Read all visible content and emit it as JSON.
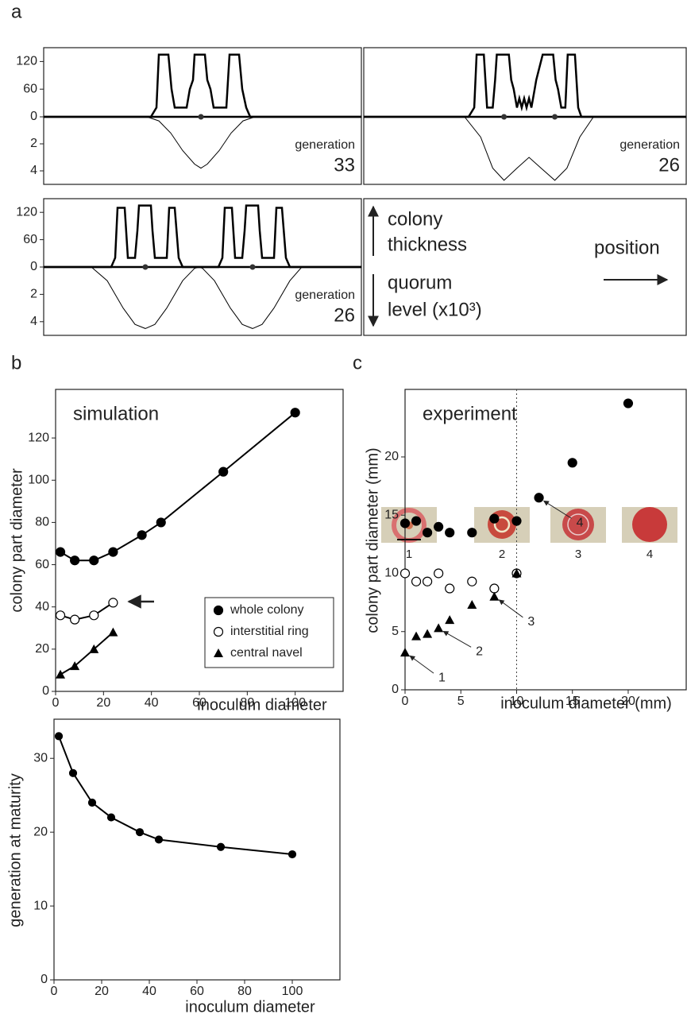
{
  "panel_labels": [
    "a",
    "b",
    "c"
  ],
  "legend_panel": {
    "thickness": [
      "colony",
      "thickness"
    ],
    "quorum": [
      "quorum",
      "level (x10³)"
    ],
    "position": "position"
  },
  "photos": {
    "labels": [
      "1",
      "2",
      "3",
      "4"
    ]
  },
  "chart_data": [
    {
      "type": "profile",
      "xlim": [
        0,
        400
      ],
      "ylim": [
        0,
        150
      ],
      "yticks": [
        0,
        60,
        120
      ],
      "y2lim": [
        0,
        5
      ],
      "y2ticks": [
        2,
        4
      ],
      "series": [
        {
          "color": "#000000",
          "x": [
            0,
            135,
            142,
            145,
            157,
            161,
            165,
            180,
            184,
            188,
            190,
            203,
            206,
            210,
            214,
            230,
            234,
            246,
            250,
            255,
            260,
            400
          ],
          "values": [
            0,
            0,
            20,
            135,
            135,
            60,
            20,
            20,
            60,
            80,
            135,
            135,
            80,
            60,
            20,
            20,
            135,
            135,
            60,
            20,
            0,
            0
          ]
        },
        {
          "color": "#000000",
          "axis": "y2",
          "x": [
            0,
            130,
            145,
            160,
            175,
            190,
            198,
            206,
            221,
            236,
            251,
            266,
            400
          ],
          "values": [
            0,
            0,
            0.3,
            1.2,
            2.5,
            3.5,
            3.8,
            3.5,
            2.5,
            1.2,
            0.3,
            0,
            0
          ]
        }
      ],
      "markers": [
        198
      ],
      "annotation": {
        "label": "generation",
        "value": 33
      }
    },
    {
      "type": "profile",
      "xlim": [
        0,
        400
      ],
      "ylim": [
        0,
        150
      ],
      "y2lim": [
        0,
        5
      ],
      "series": [
        {
          "color": "#000000",
          "x": [
            0,
            130,
            137,
            140,
            149,
            153,
            160,
            163,
            165,
            180,
            183,
            186,
            190,
            193,
            196,
            199,
            202,
            205,
            208,
            212,
            214,
            222,
            235,
            238,
            241,
            245,
            250,
            253,
            262,
            266,
            270,
            400
          ],
          "values": [
            0,
            0,
            20,
            135,
            135,
            20,
            20,
            80,
            135,
            135,
            80,
            60,
            20,
            40,
            20,
            40,
            20,
            40,
            20,
            60,
            80,
            135,
            135,
            80,
            60,
            20,
            20,
            135,
            135,
            20,
            0,
            0
          ]
        },
        {
          "color": "#000000",
          "axis": "y2",
          "x": [
            0,
            125,
            145,
            160,
            174,
            190,
            205,
            220,
            237,
            252,
            268,
            285,
            400
          ],
          "values": [
            0,
            0,
            1.5,
            3.8,
            4.7,
            3.8,
            3.0,
            3.8,
            4.7,
            3.8,
            1.5,
            0,
            0
          ]
        }
      ],
      "markers": [
        174,
        237
      ],
      "annotation": {
        "label": "generation",
        "value": 26
      }
    },
    {
      "type": "profile",
      "xlim": [
        0,
        400
      ],
      "ylim": [
        0,
        150
      ],
      "yticks": [
        0,
        60,
        120
      ],
      "y2lim": [
        0,
        5
      ],
      "y2ticks": [
        2,
        4
      ],
      "series": [
        {
          "color": "#000000",
          "x": [
            0,
            85,
            90,
            93,
            102,
            106,
            115,
            118,
            120,
            135,
            137,
            140,
            155,
            158,
            165,
            170,
            175,
            220,
            225,
            228,
            237,
            241,
            250,
            253,
            255,
            270,
            272,
            275,
            290,
            293,
            300,
            305,
            310,
            400
          ],
          "values": [
            0,
            0,
            20,
            130,
            130,
            20,
            20,
            80,
            135,
            135,
            80,
            20,
            20,
            130,
            130,
            20,
            0,
            0,
            20,
            130,
            130,
            20,
            20,
            80,
            135,
            135,
            80,
            20,
            20,
            130,
            130,
            20,
            0,
            0
          ]
        },
        {
          "color": "#000000",
          "axis": "y2",
          "x": [
            0,
            60,
            80,
            100,
            115,
            128,
            140,
            155,
            175,
            190,
            196,
            200,
            215,
            235,
            250,
            263,
            275,
            290,
            310,
            325,
            400
          ],
          "values": [
            0,
            0,
            1,
            3,
            4.2,
            4.5,
            4.2,
            3,
            1,
            0.1,
            0,
            0.1,
            1,
            3,
            4.2,
            4.5,
            4.2,
            3,
            1,
            0,
            0
          ]
        }
      ],
      "markers": [
        128,
        263
      ],
      "annotation": {
        "label": "generation",
        "value": 26
      }
    },
    {
      "type": "line",
      "title": "simulation",
      "xlabel": "inoculum diameter",
      "ylabel": "colony part diameter",
      "xlim": [
        0,
        120
      ],
      "xticks": [
        0,
        20,
        40,
        60,
        80,
        100
      ],
      "ylim": [
        0,
        143
      ],
      "yticks": [
        0,
        20,
        40,
        60,
        80,
        100,
        120
      ],
      "legend": true,
      "series": [
        {
          "name": "whole colony",
          "marker": "filled",
          "color": "#000000",
          "x": [
            2,
            8,
            16,
            24,
            36,
            44,
            70,
            100
          ],
          "values": [
            66,
            62,
            62,
            66,
            74,
            80,
            104,
            132
          ]
        },
        {
          "name": "interstitial ring",
          "marker": "open",
          "color": "#000000",
          "x": [
            2,
            8,
            16,
            24
          ],
          "values": [
            36,
            34,
            36,
            42
          ]
        },
        {
          "name": "central navel",
          "marker": "triangle",
          "color": "#000000",
          "x": [
            2,
            8,
            16,
            24
          ],
          "values": [
            8,
            12,
            20,
            28
          ]
        }
      ]
    },
    {
      "type": "scatter",
      "title": "experiment",
      "xlabel": "inoculum diameter (mm)",
      "ylabel": "colony part diameter (mm)",
      "xlim": [
        0,
        25.2
      ],
      "xticks": [
        0,
        5,
        10,
        15,
        20
      ],
      "ylim": [
        0,
        25.8
      ],
      "yticks": [
        0,
        5,
        10,
        15,
        20
      ],
      "vline": 10,
      "annotations": [
        "1",
        "2",
        "3",
        "4"
      ],
      "series": [
        {
          "marker": "filled",
          "color": "#000000",
          "x": [
            0,
            1,
            2,
            3,
            4,
            6,
            8,
            10,
            12,
            15,
            20
          ],
          "values": [
            14.3,
            14.5,
            13.5,
            14,
            13.5,
            13.5,
            14.7,
            14.5,
            16.5,
            19.5,
            24.6
          ]
        },
        {
          "marker": "open",
          "color": "#000000",
          "x": [
            0,
            1,
            2,
            3,
            4,
            6,
            8,
            10
          ],
          "values": [
            10,
            9.3,
            9.3,
            10,
            8.7,
            9.3,
            8.7,
            10
          ]
        },
        {
          "marker": "triangle",
          "color": "#000000",
          "x": [
            0,
            1,
            2,
            3,
            4,
            6,
            8,
            10
          ],
          "values": [
            3.2,
            4.6,
            4.8,
            5.3,
            6,
            7.3,
            8,
            10
          ]
        }
      ]
    },
    {
      "type": "line",
      "xlabel": "inoculum diameter",
      "ylabel": "generation at maturity",
      "xlim": [
        0,
        120
      ],
      "xticks": [
        0,
        20,
        40,
        60,
        80,
        100
      ],
      "ylim": [
        0,
        35.3
      ],
      "yticks": [
        0,
        10,
        20,
        30
      ],
      "series": [
        {
          "marker": "small",
          "color": "#000000",
          "x": [
            2,
            8,
            16,
            24,
            36,
            44,
            70,
            100
          ],
          "values": [
            33,
            28,
            24,
            22,
            20,
            19,
            18,
            17
          ]
        }
      ]
    }
  ]
}
